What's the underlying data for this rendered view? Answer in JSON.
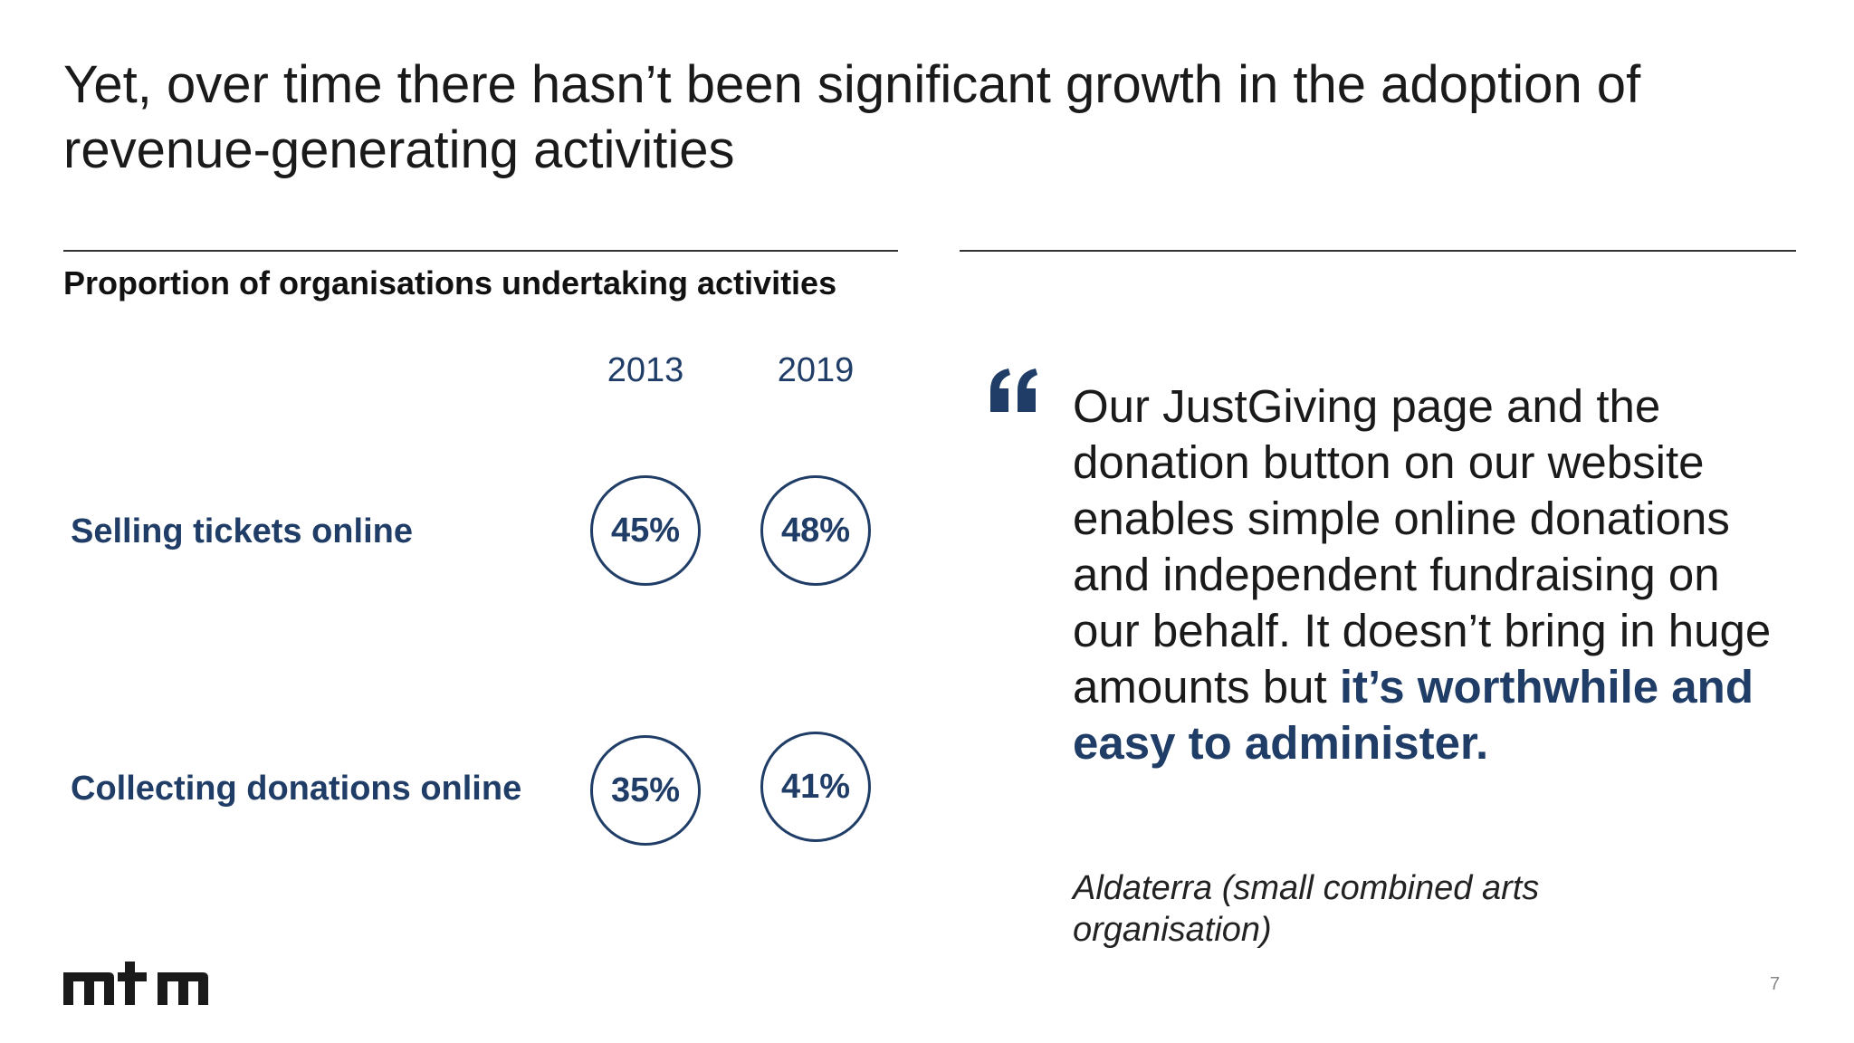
{
  "slide": {
    "title": "Yet, over time there hasn’t been significant growth in the adoption of revenue-generating activities",
    "page_number": "7"
  },
  "chart": {
    "title": "Proportion of organisations undertaking activities",
    "years": [
      "2013",
      "2019"
    ],
    "rows": [
      {
        "label": "Selling tickets online",
        "values": [
          "45%",
          "48%"
        ]
      },
      {
        "label": "Collecting donations online",
        "values": [
          "35%",
          "41%"
        ]
      }
    ]
  },
  "chart_data": {
    "type": "table",
    "title": "Proportion of organisations undertaking activities",
    "categories": [
      "Selling tickets online",
      "Collecting donations online"
    ],
    "series": [
      {
        "name": "2013",
        "values": [
          45,
          35
        ]
      },
      {
        "name": "2019",
        "values": [
          48,
          41
        ]
      }
    ],
    "unit": "%"
  },
  "quote": {
    "text_plain": "Our JustGiving page and the donation button on our website enables simple online donations and independent fundraising on our behalf. It doesn’t bring in huge amounts but ",
    "text_emphasis": "it’s worthwhile and easy to administer.",
    "attribution": "Aldaterra (small combined arts organisation)",
    "icon": "quotation-mark-icon"
  },
  "logo": {
    "text": "mtm",
    "icon": "mtm-logo"
  },
  "colors": {
    "accent": "#1f3d66",
    "text": "#1a1a1a",
    "rule": "#333333"
  }
}
